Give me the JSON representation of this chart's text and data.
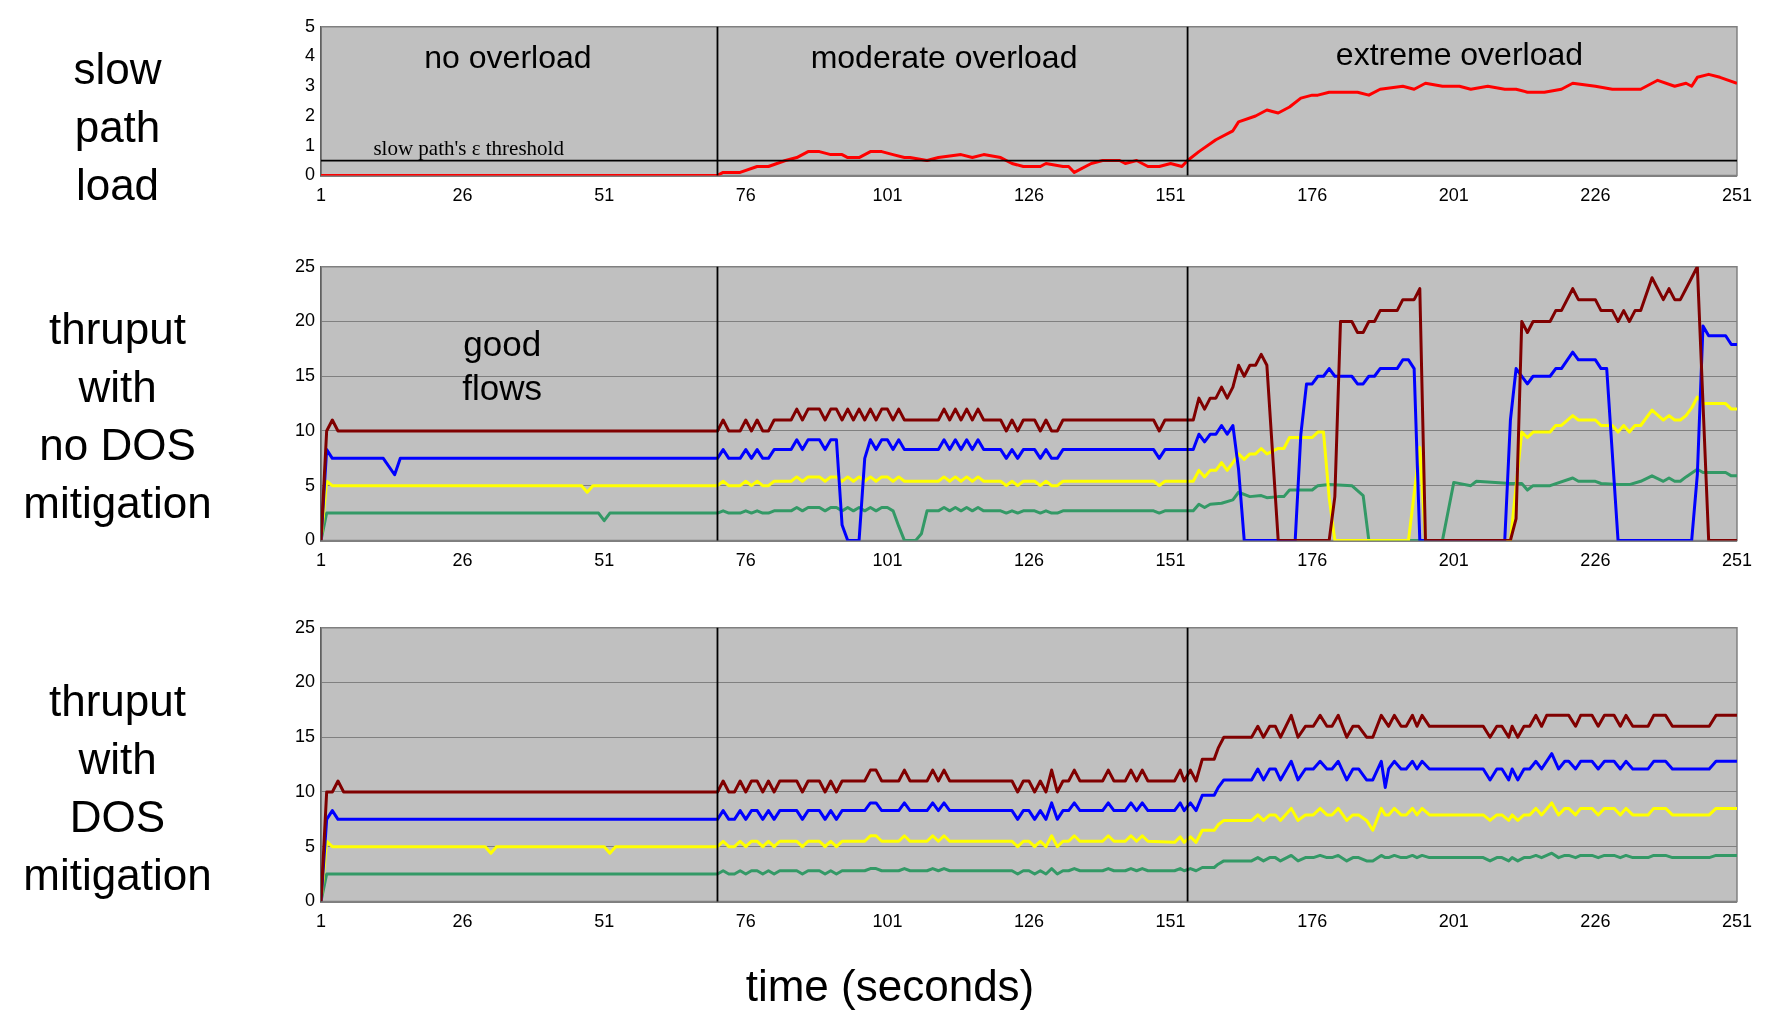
{
  "chart_data": [
    {
      "type": "line",
      "ylabel": "slow\npath\nload",
      "xlim": [
        1,
        251
      ],
      "xticks": [
        1,
        26,
        51,
        76,
        101,
        126,
        151,
        176,
        201,
        226,
        251
      ],
      "ylim": [
        0,
        5
      ],
      "yticks": [
        0,
        1,
        2,
        3,
        4,
        5
      ],
      "series": [
        {
          "color": "#ff0000",
          "x": [
            1,
            71,
            72,
            75,
            78,
            80,
            83,
            85,
            87,
            89,
            91,
            93,
            94,
            96,
            98,
            100,
            102,
            104,
            105,
            108,
            110,
            114,
            116,
            118,
            121,
            123,
            125,
            128,
            129,
            132,
            133,
            134,
            137,
            139,
            142,
            143,
            145,
            147,
            149,
            151,
            153,
            154,
            156,
            159,
            162,
            163,
            166,
            168,
            170,
            172,
            174,
            176,
            177,
            179,
            182,
            184,
            186,
            188,
            192,
            194,
            196,
            199,
            202,
            204,
            207,
            210,
            212,
            214,
            217,
            220,
            222,
            226,
            229,
            234,
            237,
            240,
            242,
            243,
            244,
            246,
            248,
            251
          ],
          "values": [
            0,
            0,
            0.1,
            0.1,
            0.3,
            0.3,
            0.5,
            0.6,
            0.8,
            0.8,
            0.7,
            0.7,
            0.6,
            0.6,
            0.8,
            0.8,
            0.7,
            0.6,
            0.6,
            0.5,
            0.6,
            0.7,
            0.6,
            0.7,
            0.6,
            0.4,
            0.3,
            0.3,
            0.4,
            0.3,
            0.3,
            0.1,
            0.4,
            0.5,
            0.5,
            0.4,
            0.5,
            0.3,
            0.3,
            0.4,
            0.3,
            0.5,
            0.8,
            1.2,
            1.5,
            1.8,
            2.0,
            2.2,
            2.1,
            2.3,
            2.6,
            2.7,
            2.7,
            2.8,
            2.8,
            2.8,
            2.7,
            2.9,
            3.0,
            2.9,
            3.1,
            3.0,
            3.0,
            2.9,
            3.0,
            2.9,
            2.9,
            2.8,
            2.8,
            2.9,
            3.1,
            3.0,
            2.9,
            2.9,
            3.2,
            3.0,
            3.1,
            3.0,
            3.3,
            3.4,
            3.3,
            3.1
          ]
        }
      ],
      "ref_lines": [
        {
          "axis": "x",
          "value": 71,
          "color": "#000000"
        },
        {
          "axis": "x",
          "value": 154,
          "color": "#000000"
        },
        {
          "axis": "y",
          "value": 0.5,
          "label": "slow path's ε threshold",
          "color": "#000000"
        }
      ],
      "annotations": [
        "no overload",
        "moderate overload",
        "extreme overload"
      ]
    },
    {
      "type": "line",
      "ylabel": "thruput\nwith\nno DOS\nmitigation",
      "xlim": [
        1,
        251
      ],
      "xticks": [
        1,
        26,
        51,
        76,
        101,
        126,
        151,
        176,
        201,
        226,
        251
      ],
      "ylim": [
        0,
        25
      ],
      "yticks": [
        0,
        5,
        10,
        15,
        20,
        25
      ],
      "grid": "y",
      "series": [
        {
          "color": "#800000",
          "x": [
            1,
            2,
            3,
            4,
            71,
            72,
            73,
            75,
            76,
            77,
            78,
            79,
            80,
            81,
            84,
            85,
            86,
            87,
            89,
            90,
            91,
            92,
            93,
            94,
            95,
            96,
            97,
            98,
            99,
            100,
            101,
            102,
            103,
            104,
            110,
            111,
            112,
            113,
            114,
            115,
            116,
            117,
            118,
            121,
            122,
            123,
            124,
            125,
            127,
            128,
            129,
            130,
            131,
            132,
            148,
            149,
            150,
            155,
            156,
            157,
            158,
            159,
            160,
            161,
            162,
            163,
            164,
            165,
            166,
            167,
            168,
            170,
            179,
            180,
            181,
            183,
            184,
            185,
            186,
            187,
            188,
            191,
            192,
            194,
            195,
            196,
            211,
            212,
            213,
            214,
            215,
            218,
            219,
            220,
            222,
            223,
            226,
            227,
            229,
            230,
            231,
            232,
            233,
            234,
            236,
            238,
            239,
            240,
            241,
            242,
            243,
            244,
            246,
            251
          ],
          "values": [
            0,
            10,
            11,
            10,
            10,
            11,
            10,
            10,
            11,
            10,
            11,
            10,
            10,
            11,
            11,
            12,
            11,
            12,
            12,
            11,
            12,
            12,
            11,
            12,
            11,
            12,
            11,
            12,
            11,
            12,
            12,
            11,
            12,
            11,
            11,
            12,
            11,
            12,
            11,
            12,
            11,
            12,
            11,
            11,
            10,
            11,
            10,
            11,
            11,
            10,
            11,
            10,
            10,
            11,
            11,
            10,
            11,
            11,
            13,
            12,
            13,
            13,
            14,
            13,
            14,
            16,
            15,
            16,
            16,
            17,
            16,
            0,
            0,
            4,
            20,
            20,
            19,
            19,
            20,
            20,
            21,
            21,
            22,
            22,
            23,
            0,
            0,
            2,
            20,
            19,
            20,
            20,
            21,
            21,
            23,
            22,
            22,
            21,
            21,
            20,
            21,
            20,
            21,
            21,
            24,
            22,
            23,
            22,
            22,
            23,
            24,
            25,
            0,
            0
          ]
        },
        {
          "color": "#0000ff",
          "x": [
            1,
            2,
            3,
            12,
            14,
            15,
            71,
            72,
            73,
            75,
            76,
            77,
            78,
            79,
            80,
            81,
            84,
            85,
            86,
            87,
            89,
            90,
            91,
            92,
            93,
            94,
            96,
            97,
            98,
            99,
            100,
            101,
            102,
            103,
            104,
            110,
            111,
            112,
            113,
            114,
            115,
            116,
            117,
            118,
            121,
            122,
            123,
            124,
            125,
            127,
            128,
            129,
            130,
            131,
            132,
            148,
            149,
            150,
            155,
            156,
            157,
            158,
            159,
            160,
            161,
            162,
            163,
            164,
            173,
            174,
            175,
            176,
            177,
            178,
            179,
            180,
            183,
            184,
            185,
            186,
            187,
            188,
            191,
            192,
            193,
            194,
            195,
            210,
            211,
            212,
            214,
            215,
            218,
            219,
            220,
            222,
            223,
            226,
            227,
            228,
            230,
            243,
            244,
            245,
            246,
            249,
            250,
            251
          ],
          "values": [
            0,
            8.3,
            7.5,
            7.5,
            6,
            7.5,
            7.5,
            8.3,
            7.5,
            7.5,
            8.3,
            7.5,
            8.3,
            7.5,
            7.5,
            8.3,
            8.3,
            9.2,
            8.3,
            9.2,
            9.2,
            8.3,
            9.2,
            9.2,
            1.4,
            0,
            0,
            7.5,
            9.2,
            8.3,
            9.2,
            9.2,
            8.3,
            9.2,
            8.3,
            8.3,
            9.2,
            8.3,
            9.2,
            8.3,
            9.2,
            8.3,
            9.2,
            8.3,
            8.3,
            7.5,
            8.3,
            7.5,
            8.3,
            8.3,
            7.5,
            8.3,
            7.5,
            7.5,
            8.3,
            8.3,
            7.5,
            8.3,
            8.3,
            9.7,
            9,
            9.7,
            9.7,
            10.5,
            9.7,
            10.5,
            6.5,
            0,
            0,
            9.7,
            14.3,
            14.3,
            15,
            15,
            15.7,
            15,
            15,
            14.3,
            14.3,
            15,
            15,
            15.7,
            15.7,
            16.5,
            16.5,
            15.7,
            0,
            0,
            11,
            15.7,
            14.3,
            15,
            15,
            15.7,
            15.7,
            17.2,
            16.5,
            16.5,
            15.7,
            15.7,
            0,
            0,
            6,
            19.6,
            18.7,
            18.7,
            17.9,
            17.9
          ]
        },
        {
          "color": "#ffff00",
          "x": [
            1,
            2,
            3,
            47,
            48,
            49,
            71,
            72,
            73,
            75,
            76,
            77,
            78,
            79,
            80,
            81,
            84,
            85,
            86,
            87,
            89,
            90,
            91,
            92,
            93,
            94,
            95,
            96,
            97,
            98,
            99,
            100,
            101,
            102,
            103,
            104,
            110,
            111,
            112,
            113,
            114,
            115,
            116,
            117,
            118,
            121,
            122,
            123,
            124,
            125,
            127,
            128,
            129,
            130,
            131,
            132,
            148,
            149,
            150,
            155,
            156,
            157,
            158,
            159,
            160,
            161,
            162,
            163,
            164,
            165,
            166,
            167,
            168,
            170,
            171,
            172,
            176,
            177,
            178,
            179,
            180,
            193,
            195,
            196,
            211,
            213,
            214,
            215,
            218,
            219,
            220,
            222,
            223,
            226,
            227,
            229,
            230,
            231,
            232,
            233,
            234,
            236,
            238,
            239,
            240,
            241,
            242,
            243,
            244,
            245,
            249,
            250,
            251
          ],
          "values": [
            0,
            5.4,
            5,
            5,
            4.4,
            5,
            5,
            5.4,
            5,
            5,
            5.4,
            5,
            5.4,
            5,
            5,
            5.4,
            5.4,
            5.8,
            5.4,
            5.8,
            5.8,
            5.4,
            5.8,
            5.8,
            5.4,
            5.8,
            5.4,
            5.8,
            5.4,
            5.8,
            5.4,
            5.8,
            5.8,
            5.4,
            5.8,
            5.4,
            5.4,
            5.8,
            5.4,
            5.8,
            5.4,
            5.8,
            5.4,
            5.8,
            5.4,
            5.4,
            5,
            5.4,
            5,
            5.4,
            5.4,
            5,
            5.4,
            5,
            5,
            5.4,
            5.4,
            5,
            5.4,
            5.4,
            6.4,
            5.8,
            6.4,
            6.4,
            7.1,
            6.4,
            7.1,
            7.9,
            7.4,
            7.9,
            7.9,
            8.4,
            7.9,
            8.4,
            8.4,
            9.4,
            9.4,
            9.9,
            9.9,
            3.9,
            0,
            0,
            8.5,
            0,
            0,
            9.9,
            9.4,
            9.9,
            9.9,
            10.5,
            10.5,
            11.4,
            11,
            11,
            10.5,
            10.5,
            9.9,
            10.5,
            9.9,
            10.5,
            10.5,
            11.9,
            11,
            11.4,
            11,
            11,
            11.4,
            12.1,
            13.1,
            12.5,
            12.5,
            12,
            12
          ]
        },
        {
          "color": "#339966",
          "x": [
            1,
            2,
            50,
            51,
            52,
            71,
            72,
            73,
            75,
            76,
            77,
            78,
            79,
            80,
            81,
            84,
            85,
            86,
            87,
            89,
            90,
            91,
            92,
            93,
            94,
            95,
            96,
            97,
            98,
            99,
            100,
            101,
            102,
            103,
            104,
            106,
            107,
            108,
            110,
            111,
            112,
            113,
            114,
            115,
            116,
            117,
            118,
            121,
            122,
            123,
            124,
            125,
            127,
            128,
            129,
            130,
            131,
            132,
            148,
            149,
            150,
            155,
            156,
            157,
            158,
            160,
            162,
            163,
            165,
            167,
            168,
            170,
            171,
            172,
            176,
            177,
            179,
            183,
            185,
            186,
            199,
            201,
            204,
            205,
            211,
            213,
            214,
            215,
            218,
            222,
            223,
            226,
            227,
            230,
            232,
            234,
            236,
            238,
            239,
            240,
            241,
            242,
            244,
            245,
            249,
            250,
            251
          ],
          "values": [
            0,
            2.5,
            2.5,
            1.8,
            2.5,
            2.5,
            2.7,
            2.5,
            2.5,
            2.7,
            2.5,
            2.7,
            2.5,
            2.5,
            2.7,
            2.7,
            3,
            2.7,
            3,
            3,
            2.7,
            3,
            3,
            2.7,
            3,
            2.7,
            3,
            2.7,
            3,
            2.7,
            3,
            3,
            2.7,
            1.3,
            0,
            0,
            0.6,
            2.7,
            2.7,
            3,
            2.7,
            3,
            2.7,
            3,
            2.7,
            3,
            2.7,
            2.7,
            2.5,
            2.7,
            2.5,
            2.7,
            2.7,
            2.5,
            2.7,
            2.5,
            2.5,
            2.7,
            2.7,
            2.5,
            2.7,
            2.7,
            3.3,
            3,
            3.3,
            3.4,
            3.7,
            4.4,
            4,
            4.1,
            3.9,
            4,
            4,
            4.6,
            4.6,
            5,
            5.1,
            5,
            4.1,
            0,
            0,
            5.3,
            5,
            5.4,
            5.2,
            5.2,
            4.6,
            5,
            5,
            5.7,
            5.4,
            5.4,
            5.2,
            5.1,
            5.1,
            5.4,
            5.9,
            5.4,
            5.7,
            5.4,
            5.4,
            5.8,
            6.5,
            6.2,
            6.2,
            5.9,
            5.9
          ]
        }
      ],
      "ref_lines": [
        {
          "axis": "x",
          "value": 71,
          "color": "#000000"
        },
        {
          "axis": "x",
          "value": 154,
          "color": "#000000"
        }
      ],
      "annotations": [
        "good\nflows"
      ]
    },
    {
      "type": "line",
      "ylabel": "thruput\nwith\nDOS\nmitigation",
      "xlabel": "time (seconds)",
      "xlim": [
        1,
        251
      ],
      "xticks": [
        1,
        26,
        51,
        76,
        101,
        126,
        151,
        176,
        201,
        226,
        251
      ],
      "ylim": [
        0,
        25
      ],
      "yticks": [
        0,
        5,
        10,
        15,
        20,
        25
      ],
      "grid": "y",
      "series": [
        {
          "color": "#800000",
          "x": [
            1,
            2,
            3,
            4,
            5,
            71,
            72,
            73,
            74,
            75,
            76,
            77,
            78,
            79,
            80,
            81,
            82,
            85,
            86,
            87,
            89,
            90,
            91,
            92,
            93,
            97,
            98,
            99,
            100,
            103,
            104,
            105,
            108,
            109,
            110,
            111,
            112,
            123,
            124,
            125,
            126,
            127,
            128,
            129,
            130,
            131,
            132,
            133,
            134,
            135,
            139,
            140,
            141,
            143,
            144,
            145,
            146,
            147,
            151.7,
            152.7,
            153.4,
            154.5,
            155.5,
            156.6,
            158.7,
            159.4,
            160.4,
            165.3,
            166.4,
            167.4,
            168.5,
            169.5,
            170.4,
            172.3,
            173.5,
            174.8,
            176.2,
            177.4,
            178.6,
            179.5,
            180.6,
            182.1,
            183.2,
            184.2,
            185.6,
            186.7,
            188.2,
            189.5,
            190.5,
            191.7,
            192.6,
            193.7,
            194.5,
            195.4,
            196.7,
            206.2,
            207.4,
            208.6,
            209.5,
            210.7,
            211.3,
            212.3,
            213.4,
            214.4,
            215.5,
            216.5,
            217.4,
            221.3,
            222.5,
            223.4,
            225.4,
            226.5,
            227.6,
            229.3,
            230.4,
            231.4,
            232.6,
            235.3,
            236.3,
            238.4,
            239.6,
            246.1,
            247.3,
            251
          ],
          "values": [
            0,
            10,
            10,
            11,
            10,
            10,
            11,
            10,
            10,
            11,
            10,
            11,
            11,
            10,
            11,
            10,
            11,
            11,
            10,
            11,
            11,
            10,
            11,
            10,
            11,
            11,
            12,
            12,
            11,
            11,
            12,
            11,
            11,
            12,
            11,
            12,
            11,
            11,
            10,
            11,
            11,
            10,
            11,
            10,
            12,
            10,
            11,
            11,
            12,
            11,
            11,
            12,
            11,
            11,
            12,
            11,
            12,
            11,
            11,
            12,
            11,
            12,
            11,
            13,
            13,
            14,
            15,
            15,
            16,
            15,
            16,
            16,
            15,
            17,
            15,
            16,
            16,
            17,
            16,
            16,
            17,
            15,
            16,
            16,
            15,
            15,
            17,
            16,
            17,
            16,
            16,
            17,
            16,
            17,
            16,
            16,
            15,
            16,
            16,
            15,
            16,
            15,
            16,
            16,
            17,
            16,
            17,
            17,
            16,
            17,
            17,
            16,
            17,
            17,
            16,
            17,
            16,
            16,
            17,
            17,
            16,
            16,
            17,
            17
          ]
        },
        {
          "color": "#0000ff",
          "x": [
            1,
            2,
            3,
            4,
            71,
            72,
            73,
            74,
            75,
            76,
            77,
            78,
            79,
            80,
            81,
            82,
            85,
            86,
            87,
            89,
            90,
            91,
            92,
            93,
            97,
            98,
            99,
            100,
            103,
            104,
            105,
            108,
            109,
            110,
            111,
            112,
            123,
            124,
            125,
            126,
            127,
            128,
            129,
            130,
            131,
            132,
            133,
            134,
            135,
            139,
            140,
            141,
            143,
            144,
            145,
            146,
            147,
            151.7,
            152.7,
            153.4,
            154.5,
            155.5,
            156.6,
            158.7,
            159.4,
            160.4,
            165.3,
            166.4,
            167.4,
            168.5,
            169.5,
            170.4,
            172.3,
            173.5,
            174.8,
            176.2,
            177.4,
            178.6,
            179.5,
            180.6,
            182.1,
            183.2,
            184.2,
            185.6,
            186.7,
            188.2,
            188.9,
            189.5,
            190.5,
            191.7,
            192.6,
            193.7,
            194.5,
            195.4,
            196.7,
            206.2,
            207.4,
            208.6,
            209.5,
            210.7,
            211.3,
            212.3,
            213.4,
            214.4,
            215.5,
            216.5,
            218.3,
            219.5,
            220.6,
            221.3,
            222.5,
            223.4,
            225.4,
            226.5,
            227.6,
            229.3,
            230.4,
            231.4,
            232.6,
            235.3,
            236.3,
            238.4,
            239.6,
            246.1,
            247.3,
            251
          ],
          "values": [
            0,
            7.5,
            8.3,
            7.5,
            7.5,
            8.3,
            7.5,
            7.5,
            8.3,
            7.5,
            8.3,
            8.3,
            7.5,
            8.3,
            7.5,
            8.3,
            8.3,
            7.5,
            8.3,
            8.3,
            7.5,
            8.3,
            7.5,
            8.3,
            8.3,
            9,
            9,
            8.3,
            8.3,
            9,
            8.3,
            8.3,
            9,
            8.3,
            9,
            8.3,
            8.3,
            7.5,
            8.3,
            8.3,
            7.5,
            8.3,
            7.5,
            9,
            7.5,
            8.3,
            8.3,
            9,
            8.3,
            8.3,
            9,
            8.3,
            8.3,
            9,
            8.3,
            9,
            8.3,
            8.3,
            9,
            8.3,
            9,
            8.3,
            9.7,
            9.7,
            10.4,
            11.1,
            11.1,
            12.1,
            11.1,
            12.1,
            12.1,
            11.1,
            12.8,
            11.1,
            12.1,
            12.1,
            12.8,
            12.1,
            12.1,
            12.8,
            11.1,
            12.1,
            12.1,
            11.1,
            11.1,
            12.8,
            10.4,
            12.1,
            12.8,
            12.1,
            12.1,
            12.8,
            12.1,
            12.8,
            12.1,
            12.1,
            11.1,
            12.1,
            12.1,
            11.1,
            12.1,
            11.1,
            12.1,
            12.1,
            12.8,
            12.1,
            13.5,
            12.1,
            12.8,
            12.8,
            12.1,
            12.8,
            12.8,
            12.1,
            12.8,
            12.8,
            12.1,
            12.8,
            12.1,
            12.1,
            12.8,
            12.8,
            12.1,
            12.1,
            12.8,
            12.8
          ]
        },
        {
          "color": "#ffff00",
          "x": [
            1,
            2,
            3,
            30,
            31,
            32,
            51,
            52,
            53,
            71,
            72,
            73,
            74,
            75,
            76,
            77,
            78,
            79,
            80,
            81,
            82,
            85,
            86,
            87,
            89,
            90,
            91,
            92,
            93,
            97,
            98,
            99,
            100,
            103,
            104,
            105,
            108,
            109,
            110,
            111,
            112,
            123,
            124,
            125,
            126,
            127,
            128,
            129,
            130,
            131,
            132,
            133,
            134,
            135,
            139,
            140,
            141,
            143,
            144,
            145,
            146,
            147,
            151.7,
            152.7,
            153.4,
            154.5,
            155.5,
            156.6,
            158.7,
            159.4,
            160.4,
            165.3,
            166.4,
            167.4,
            168.5,
            169.5,
            170.4,
            172.3,
            173.5,
            174.8,
            176.2,
            177.4,
            178.6,
            179.5,
            180.6,
            182.1,
            183.2,
            184.2,
            185.6,
            186.7,
            188.2,
            188.9,
            189.5,
            190.5,
            191.7,
            192.6,
            193.7,
            194.5,
            195.4,
            196.7,
            206.2,
            207.4,
            208.6,
            209.5,
            210.7,
            211.3,
            212.3,
            213.4,
            214.4,
            215.5,
            216.5,
            218.3,
            219.5,
            220.6,
            221.3,
            222.5,
            223.4,
            225.4,
            226.5,
            227.6,
            229.3,
            230.4,
            231.4,
            232.6,
            235.3,
            236.3,
            238.4,
            239.6,
            246.1,
            247.3,
            251
          ],
          "values": [
            0,
            5.5,
            5,
            5,
            4.4,
            5,
            5,
            4.4,
            5,
            5,
            5.5,
            5,
            5,
            5.5,
            5,
            5.5,
            5.5,
            5,
            5.5,
            5,
            5.5,
            5.5,
            5,
            5.5,
            5.5,
            5,
            5.5,
            5,
            5.5,
            5.5,
            6,
            6,
            5.5,
            5.5,
            6,
            5.5,
            5.5,
            6,
            5.5,
            6,
            5.5,
            5.5,
            5,
            5.5,
            5.5,
            5,
            5.5,
            5,
            6,
            5,
            5.5,
            5.5,
            6,
            5.5,
            5.5,
            6,
            5.5,
            5.5,
            6,
            5.5,
            6,
            5.5,
            5.4,
            5.9,
            5.4,
            5.9,
            5.4,
            6.5,
            6.5,
            7,
            7.4,
            7.4,
            7.9,
            7.4,
            7.9,
            7.9,
            7.4,
            8.5,
            7.4,
            7.9,
            7.9,
            8.5,
            7.9,
            7.9,
            8.5,
            7.4,
            7.9,
            7.9,
            7.4,
            6.5,
            8.5,
            7.9,
            7.9,
            8.5,
            7.9,
            7.9,
            8.5,
            7.9,
            8.5,
            7.9,
            7.9,
            7.4,
            7.9,
            7.9,
            7.4,
            7.9,
            7.4,
            7.9,
            7.9,
            8.5,
            7.9,
            9,
            7.9,
            8.5,
            8.5,
            7.9,
            8.5,
            8.5,
            7.9,
            8.5,
            8.5,
            7.9,
            8.5,
            7.9,
            7.9,
            8.5,
            8.5,
            7.9,
            7.9,
            8.5,
            8.5
          ]
        },
        {
          "color": "#339966",
          "x": [
            1,
            2,
            71,
            72,
            73,
            74,
            75,
            76,
            77,
            78,
            79,
            80,
            81,
            82,
            85,
            86,
            87,
            89,
            90,
            91,
            92,
            93,
            97,
            98,
            99,
            100,
            103,
            104,
            105,
            108,
            109,
            110,
            111,
            112,
            123,
            124,
            125,
            126,
            127,
            128,
            129,
            130,
            131,
            132,
            133,
            134,
            135,
            139,
            140,
            141,
            143,
            144,
            145,
            146,
            147,
            151.7,
            152.7,
            153.4,
            154.5,
            155.5,
            156.6,
            158.7,
            159.4,
            160.4,
            165.3,
            166.4,
            167.4,
            168.5,
            169.5,
            170.4,
            172.3,
            173.5,
            174.8,
            176.2,
            177.4,
            178.6,
            179.5,
            180.6,
            182.1,
            183.2,
            184.2,
            185.6,
            186.7,
            188.2,
            188.9,
            189.5,
            190.5,
            191.7,
            192.6,
            193.7,
            194.5,
            195.4,
            196.7,
            206.2,
            207.4,
            208.6,
            209.5,
            210.7,
            211.3,
            212.3,
            213.4,
            214.4,
            215.5,
            216.5,
            218.3,
            219.5,
            220.6,
            221.3,
            222.5,
            223.4,
            225.4,
            226.5,
            227.6,
            229.3,
            230.4,
            231.4,
            232.6,
            235.3,
            236.3,
            238.4,
            239.6,
            246.1,
            247.3,
            251
          ],
          "values": [
            0,
            2.5,
            2.5,
            2.8,
            2.5,
            2.5,
            2.8,
            2.5,
            2.8,
            2.8,
            2.5,
            2.8,
            2.5,
            2.8,
            2.8,
            2.5,
            2.8,
            2.8,
            2.5,
            2.8,
            2.5,
            2.8,
            2.8,
            3,
            3,
            2.8,
            2.8,
            3,
            2.8,
            2.8,
            3,
            2.8,
            3,
            2.8,
            2.8,
            2.5,
            2.8,
            2.8,
            2.5,
            2.8,
            2.5,
            3,
            2.5,
            2.8,
            2.8,
            3,
            2.8,
            2.8,
            3,
            2.8,
            2.8,
            3,
            2.8,
            3,
            2.8,
            2.8,
            3,
            2.8,
            3,
            2.8,
            3.1,
            3.1,
            3.4,
            3.7,
            3.7,
            4,
            3.7,
            4,
            4,
            3.7,
            4.2,
            3.7,
            4,
            4,
            4.2,
            4,
            4,
            4.2,
            3.7,
            4,
            4,
            3.7,
            3.7,
            4.2,
            4,
            4,
            4.2,
            4,
            4,
            4.2,
            4,
            4.2,
            4,
            4,
            3.7,
            4,
            4,
            3.7,
            4,
            3.7,
            4,
            4,
            4.2,
            4,
            4.4,
            4,
            4.2,
            4.2,
            4,
            4.2,
            4.2,
            4,
            4.2,
            4.2,
            4,
            4.2,
            4,
            4,
            4.2,
            4.2,
            4,
            4,
            4.2,
            4.2
          ]
        }
      ],
      "ref_lines": [
        {
          "axis": "x",
          "value": 71,
          "color": "#000000"
        },
        {
          "axis": "x",
          "value": 154,
          "color": "#000000"
        }
      ]
    }
  ]
}
